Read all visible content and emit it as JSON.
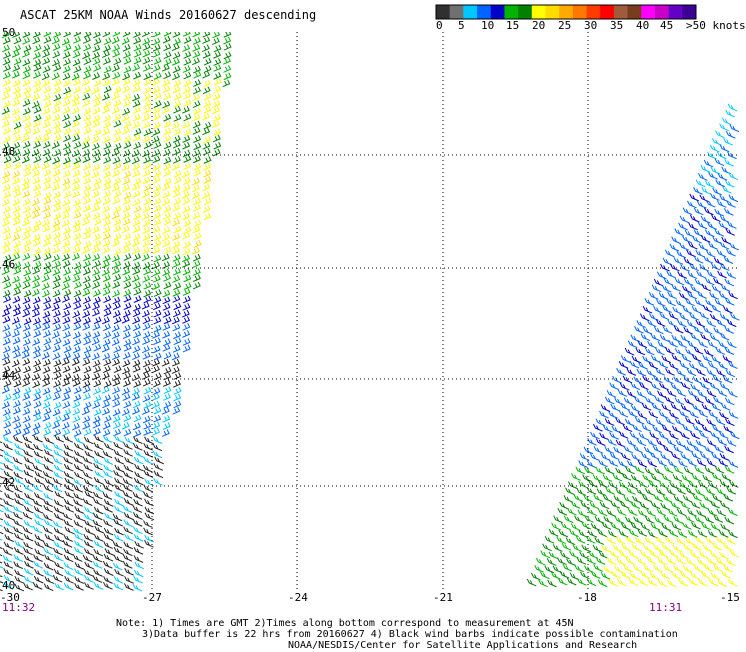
{
  "title": "ASCAT 25KM NOAA Winds 20160627 descending",
  "legend": {
    "labels": [
      "0",
      "5",
      "10",
      "15",
      "20",
      "25",
      "30",
      "35",
      "40",
      "45",
      ">50 knots"
    ],
    "colors": [
      "#303030",
      "#707070",
      "#00c8ff",
      "#0064ff",
      "#0000c8",
      "#00b400",
      "#008200",
      "#ffff00",
      "#ffdc00",
      "#ffaa00",
      "#ff7800",
      "#ff3c00",
      "#ff0000",
      "#a05a3c",
      "#783c1e",
      "#ff00ff",
      "#c800c8",
      "#6400c8",
      "#3c0096"
    ]
  },
  "axes": {
    "lat_labels": [
      "50",
      "48",
      "46",
      "44",
      "42",
      "40"
    ],
    "lon_labels": [
      "-30",
      "-27",
      "-24",
      "-21",
      "-18",
      "-15"
    ]
  },
  "times": {
    "left": "11:32",
    "right": "11:31"
  },
  "notes": [
    "Note: 1) Times are GMT 2)Times along bottom correspond to measurement at 45N",
    "3)Data buffer is 22 hrs from 20160627 4) Black wind barbs indicate possible contamination",
    "NOAA/NESDIS/Center for Satellite Applications and Research"
  ]
}
